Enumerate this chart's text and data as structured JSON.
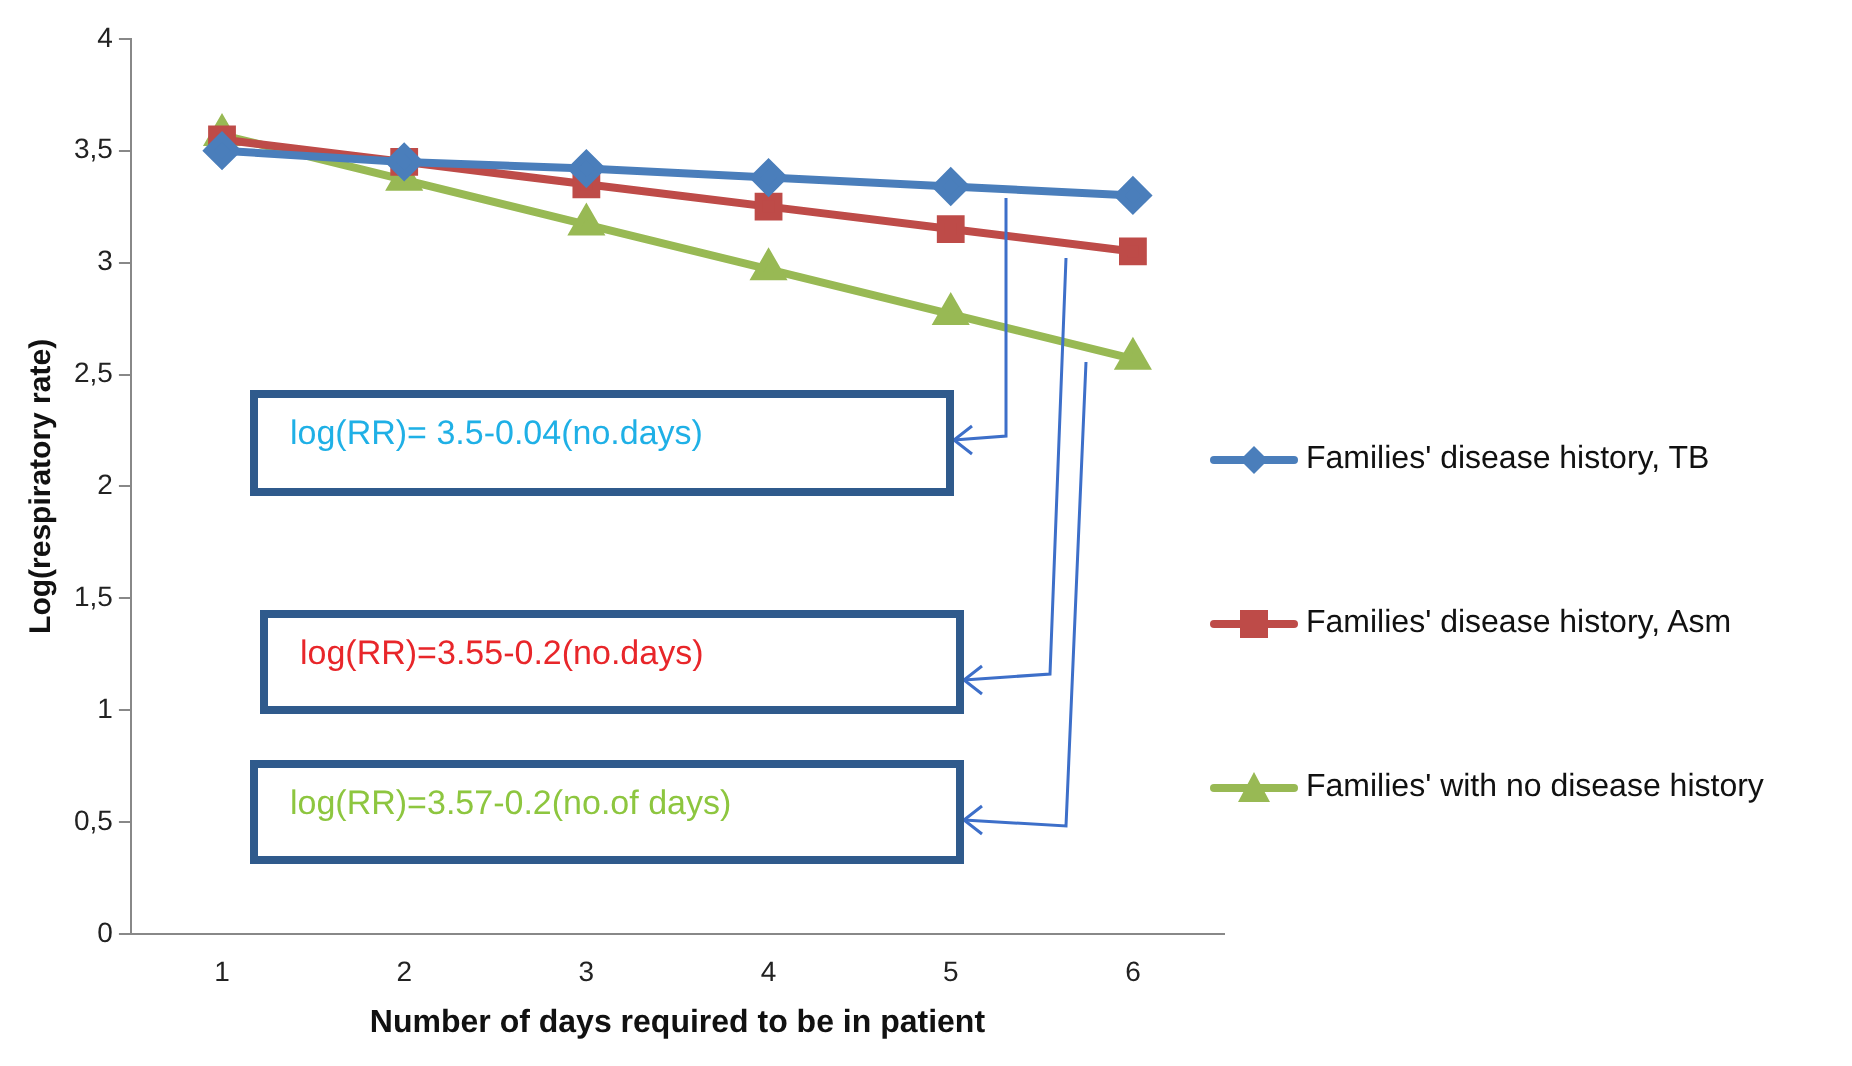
{
  "chart_data": {
    "type": "line",
    "xlabel": "Number of days required to be in patient",
    "ylabel": "Log(respiratory rate)",
    "categories": [
      "1",
      "2",
      "3",
      "4",
      "5",
      "6"
    ],
    "series": [
      {
        "name": "Families' disease history, TB",
        "color": "#4a7ebb",
        "marker": "diamond",
        "values": [
          3.5,
          3.45,
          3.42,
          3.38,
          3.34,
          3.3
        ]
      },
      {
        "name": "Families' disease history, Asm",
        "color": "#be4b48",
        "marker": "square",
        "values": [
          3.55,
          3.45,
          3.35,
          3.25,
          3.15,
          3.05
        ]
      },
      {
        "name": "Families' with  no disease history",
        "color": "#98b954",
        "marker": "triangle",
        "values": [
          3.57,
          3.37,
          3.17,
          2.97,
          2.77,
          2.57
        ]
      }
    ],
    "ylim": [
      0,
      4
    ],
    "yticks": [
      0,
      {
        "value": 0.5,
        "label": "0,5"
      },
      1,
      {
        "value": 1.5,
        "label": "1,5"
      },
      2,
      {
        "value": 2.5,
        "label": "2,5"
      },
      3,
      {
        "value": 3.5,
        "label": "3,5"
      },
      4
    ],
    "grid": false,
    "legend": "right",
    "annotations": [
      "log(RR)= 3.5-0.04(no.days)",
      "log(RR)=3.55-0.2(no.days)",
      "log(RR)=3.57-0.2(no.of days)"
    ]
  }
}
